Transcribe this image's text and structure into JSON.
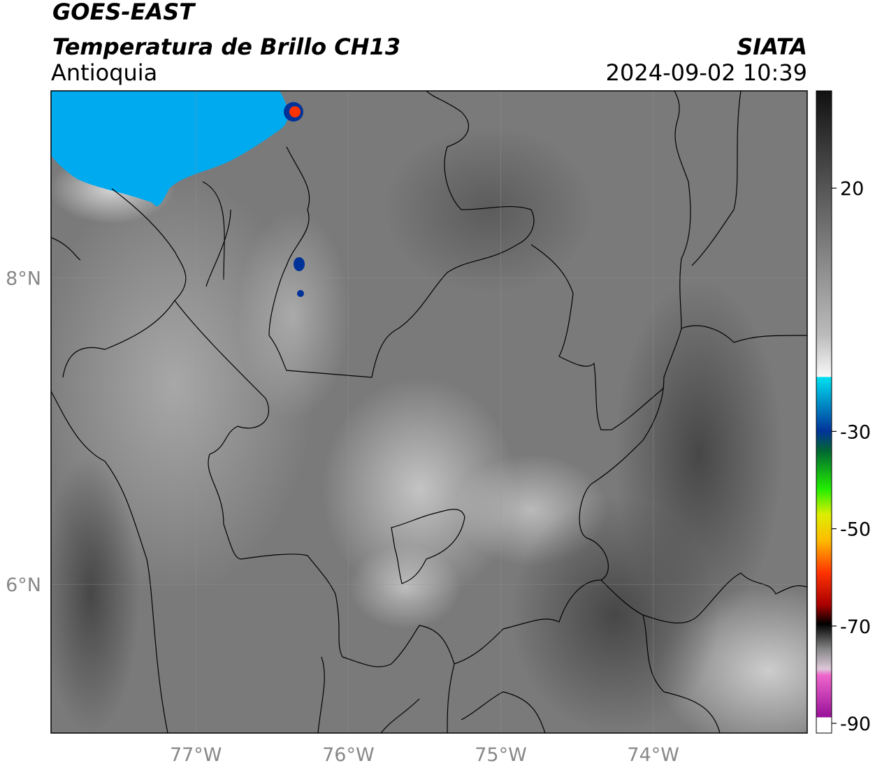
{
  "header": {
    "title": "GOES-EAST",
    "subtitle": "Temperatura de Brillo CH13",
    "region": "Antioquia",
    "source": "SIATA",
    "datetime": "2024-09-02 10:39"
  },
  "map": {
    "xlim": [
      -77.95,
      -72.99
    ],
    "ylim": [
      5.03,
      9.22
    ],
    "xticks": [
      {
        "value": -77,
        "label": "77°W"
      },
      {
        "value": -76,
        "label": "76°W"
      },
      {
        "value": -75,
        "label": "75°W"
      },
      {
        "value": -74,
        "label": "74°W"
      }
    ],
    "yticks": [
      {
        "value": 8,
        "label": "8°N"
      },
      {
        "value": 6,
        "label": "6°N"
      }
    ],
    "grid": true
  },
  "colorbar": {
    "lim": [
      -92,
      40
    ],
    "ticks": [
      20,
      -30,
      -50,
      -70,
      -90
    ]
  }
}
